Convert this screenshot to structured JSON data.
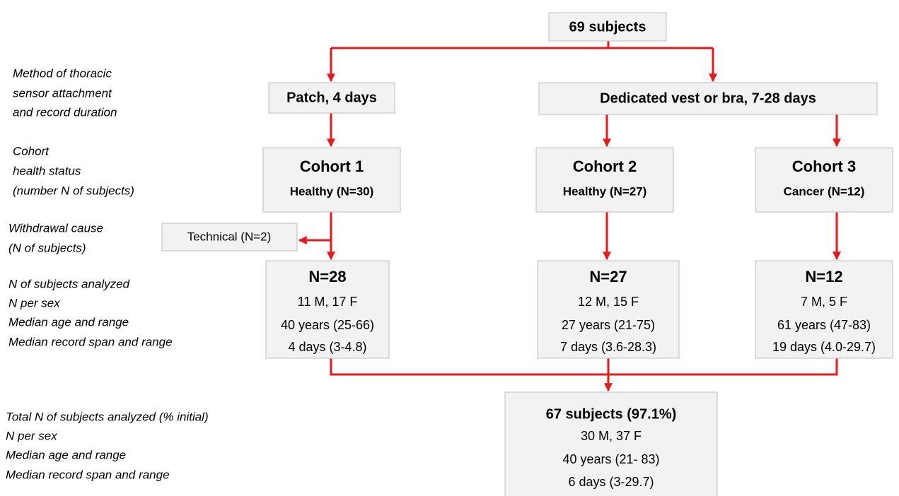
{
  "side_labels": {
    "method": [
      "Method of thoracic",
      "sensor attachment",
      "and record duration"
    ],
    "cohort": [
      "Cohort",
      "health status",
      "(number N of subjects)"
    ],
    "withdrawal": [
      "Withdrawal cause",
      "(N of subjects)"
    ],
    "analyzed": [
      "N of subjects analyzed",
      "N per sex",
      "Median age and range",
      "Median record span and range"
    ],
    "total": [
      "Total N of subjects analyzed (% initial)",
      "N per sex",
      "Median age and range",
      "Median record span and range"
    ]
  },
  "nodes": {
    "start": "69 subjects",
    "patch": "Patch, 4 days",
    "vest": "Dedicated vest or bra, 7-28 days",
    "cohorts": [
      {
        "title": "Cohort 1",
        "status": "Healthy (N=30)"
      },
      {
        "title": "Cohort 2",
        "status": "Healthy (N=27)"
      },
      {
        "title": "Cohort 3",
        "status": "Cancer (N=12)"
      }
    ],
    "technical": "Technical (N=2)",
    "analyzed": [
      {
        "title": "N=28",
        "lines": [
          "11 M, 17 F",
          "40 years (25-66)",
          "4 days (3-4.8)"
        ]
      },
      {
        "title": "N=27",
        "lines": [
          "12 M, 15 F",
          "27 years (21-75)",
          "7 days (3.6-28.3)"
        ]
      },
      {
        "title": "N=12",
        "lines": [
          "7 M, 5 F",
          "61 years (47-83)",
          "19 days (4.0-29.7)"
        ]
      }
    ],
    "total": {
      "title": "67 subjects (97.1%)",
      "lines": [
        "30 M, 37 F",
        "40 years (21- 83)",
        "6 days (3-29.7)"
      ]
    }
  }
}
